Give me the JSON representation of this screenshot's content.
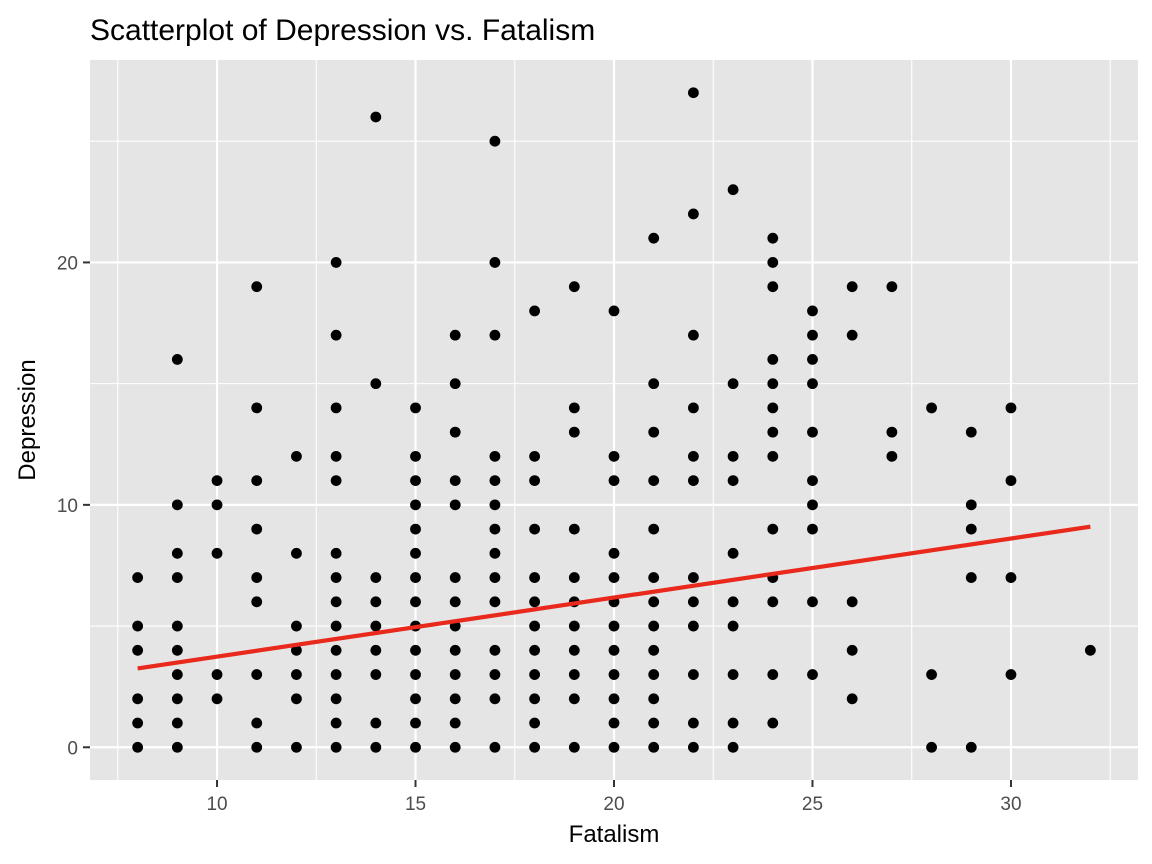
{
  "chart_data": {
    "type": "scatter",
    "title": "Scatterplot of Depression vs. Fatalism",
    "xlabel": "Fatalism",
    "ylabel": "Depression",
    "xlim": [
      6.8,
      33.2
    ],
    "ylim": [
      -1.35,
      28.35
    ],
    "x_ticks": [
      10,
      15,
      20,
      25,
      30
    ],
    "y_ticks": [
      0,
      10,
      20
    ],
    "grid": true,
    "legend": "none",
    "point_color": "#000000",
    "panel_background": "#e5e5e5",
    "fit_line": {
      "color": "#e8291c",
      "x": [
        8,
        32
      ],
      "y": [
        3.25,
        9.1
      ]
    },
    "points": [
      [
        8,
        0
      ],
      [
        8,
        1
      ],
      [
        8,
        2
      ],
      [
        8,
        4
      ],
      [
        8,
        5
      ],
      [
        8,
        7
      ],
      [
        9,
        0
      ],
      [
        9,
        1
      ],
      [
        9,
        2
      ],
      [
        9,
        3
      ],
      [
        9,
        4
      ],
      [
        9,
        5
      ],
      [
        9,
        7
      ],
      [
        9,
        8
      ],
      [
        9,
        10
      ],
      [
        9,
        16
      ],
      [
        10,
        2
      ],
      [
        10,
        3
      ],
      [
        10,
        8
      ],
      [
        10,
        10
      ],
      [
        10,
        11
      ],
      [
        11,
        0
      ],
      [
        11,
        1
      ],
      [
        11,
        3
      ],
      [
        11,
        6
      ],
      [
        11,
        7
      ],
      [
        11,
        9
      ],
      [
        11,
        11
      ],
      [
        11,
        14
      ],
      [
        11,
        19
      ],
      [
        12,
        0
      ],
      [
        12,
        2
      ],
      [
        12,
        3
      ],
      [
        12,
        4
      ],
      [
        12,
        5
      ],
      [
        12,
        8
      ],
      [
        12,
        12
      ],
      [
        13,
        0
      ],
      [
        13,
        1
      ],
      [
        13,
        2
      ],
      [
        13,
        3
      ],
      [
        13,
        4
      ],
      [
        13,
        5
      ],
      [
        13,
        6
      ],
      [
        13,
        7
      ],
      [
        13,
        8
      ],
      [
        13,
        11
      ],
      [
        13,
        12
      ],
      [
        13,
        14
      ],
      [
        13,
        17
      ],
      [
        13,
        20
      ],
      [
        14,
        0
      ],
      [
        14,
        1
      ],
      [
        14,
        3
      ],
      [
        14,
        4
      ],
      [
        14,
        5
      ],
      [
        14,
        6
      ],
      [
        14,
        7
      ],
      [
        14,
        15
      ],
      [
        14,
        26
      ],
      [
        15,
        0
      ],
      [
        15,
        1
      ],
      [
        15,
        2
      ],
      [
        15,
        3
      ],
      [
        15,
        4
      ],
      [
        15,
        5
      ],
      [
        15,
        6
      ],
      [
        15,
        7
      ],
      [
        15,
        8
      ],
      [
        15,
        9
      ],
      [
        15,
        10
      ],
      [
        15,
        11
      ],
      [
        15,
        12
      ],
      [
        15,
        14
      ],
      [
        16,
        0
      ],
      [
        16,
        1
      ],
      [
        16,
        2
      ],
      [
        16,
        3
      ],
      [
        16,
        4
      ],
      [
        16,
        5
      ],
      [
        16,
        6
      ],
      [
        16,
        7
      ],
      [
        16,
        10
      ],
      [
        16,
        11
      ],
      [
        16,
        13
      ],
      [
        16,
        15
      ],
      [
        16,
        17
      ],
      [
        17,
        0
      ],
      [
        17,
        2
      ],
      [
        17,
        3
      ],
      [
        17,
        4
      ],
      [
        17,
        6
      ],
      [
        17,
        7
      ],
      [
        17,
        8
      ],
      [
        17,
        9
      ],
      [
        17,
        10
      ],
      [
        17,
        11
      ],
      [
        17,
        12
      ],
      [
        17,
        17
      ],
      [
        17,
        20
      ],
      [
        17,
        25
      ],
      [
        18,
        0
      ],
      [
        18,
        1
      ],
      [
        18,
        2
      ],
      [
        18,
        3
      ],
      [
        18,
        4
      ],
      [
        18,
        5
      ],
      [
        18,
        6
      ],
      [
        18,
        7
      ],
      [
        18,
        9
      ],
      [
        18,
        11
      ],
      [
        18,
        12
      ],
      [
        18,
        18
      ],
      [
        19,
        0
      ],
      [
        19,
        2
      ],
      [
        19,
        3
      ],
      [
        19,
        4
      ],
      [
        19,
        5
      ],
      [
        19,
        6
      ],
      [
        19,
        7
      ],
      [
        19,
        9
      ],
      [
        19,
        13
      ],
      [
        19,
        14
      ],
      [
        19,
        19
      ],
      [
        20,
        0
      ],
      [
        20,
        1
      ],
      [
        20,
        2
      ],
      [
        20,
        3
      ],
      [
        20,
        4
      ],
      [
        20,
        5
      ],
      [
        20,
        6
      ],
      [
        20,
        7
      ],
      [
        20,
        8
      ],
      [
        20,
        11
      ],
      [
        20,
        12
      ],
      [
        20,
        18
      ],
      [
        21,
        0
      ],
      [
        21,
        1
      ],
      [
        21,
        2
      ],
      [
        21,
        3
      ],
      [
        21,
        4
      ],
      [
        21,
        5
      ],
      [
        21,
        6
      ],
      [
        21,
        7
      ],
      [
        21,
        9
      ],
      [
        21,
        11
      ],
      [
        21,
        13
      ],
      [
        21,
        15
      ],
      [
        21,
        21
      ],
      [
        22,
        0
      ],
      [
        22,
        1
      ],
      [
        22,
        3
      ],
      [
        22,
        5
      ],
      [
        22,
        6
      ],
      [
        22,
        7
      ],
      [
        22,
        11
      ],
      [
        22,
        12
      ],
      [
        22,
        14
      ],
      [
        22,
        17
      ],
      [
        22,
        22
      ],
      [
        22,
        27
      ],
      [
        23,
        0
      ],
      [
        23,
        1
      ],
      [
        23,
        3
      ],
      [
        23,
        5
      ],
      [
        23,
        6
      ],
      [
        23,
        8
      ],
      [
        23,
        11
      ],
      [
        23,
        12
      ],
      [
        23,
        15
      ],
      [
        23,
        23
      ],
      [
        24,
        1
      ],
      [
        24,
        3
      ],
      [
        24,
        6
      ],
      [
        24,
        7
      ],
      [
        24,
        9
      ],
      [
        24,
        12
      ],
      [
        24,
        13
      ],
      [
        24,
        14
      ],
      [
        24,
        15
      ],
      [
        24,
        16
      ],
      [
        24,
        19
      ],
      [
        24,
        20
      ],
      [
        24,
        21
      ],
      [
        25,
        3
      ],
      [
        25,
        6
      ],
      [
        25,
        9
      ],
      [
        25,
        10
      ],
      [
        25,
        11
      ],
      [
        25,
        13
      ],
      [
        25,
        15
      ],
      [
        25,
        16
      ],
      [
        25,
        17
      ],
      [
        25,
        18
      ],
      [
        26,
        2
      ],
      [
        26,
        4
      ],
      [
        26,
        6
      ],
      [
        26,
        17
      ],
      [
        26,
        19
      ],
      [
        27,
        12
      ],
      [
        27,
        13
      ],
      [
        27,
        19
      ],
      [
        28,
        0
      ],
      [
        28,
        3
      ],
      [
        28,
        14
      ],
      [
        29,
        0
      ],
      [
        29,
        7
      ],
      [
        29,
        9
      ],
      [
        29,
        10
      ],
      [
        29,
        13
      ],
      [
        30,
        3
      ],
      [
        30,
        7
      ],
      [
        30,
        11
      ],
      [
        30,
        14
      ],
      [
        32,
        4
      ]
    ]
  }
}
